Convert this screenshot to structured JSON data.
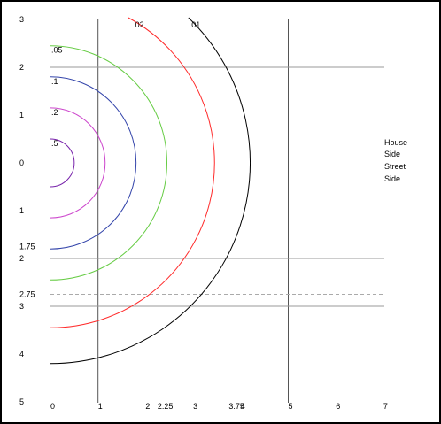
{
  "chart_data": {
    "type": "line",
    "x_tick_labels": [
      {
        "value": 0,
        "label": "0"
      },
      {
        "value": 1,
        "label": "1"
      },
      {
        "value": 2,
        "label": "2"
      },
      {
        "value": 2.25,
        "label": "2.25"
      },
      {
        "value": 3,
        "label": "3"
      },
      {
        "value": 3.75,
        "label": "3.75"
      },
      {
        "value": 4,
        "label": "4"
      },
      {
        "value": 5,
        "label": "5"
      },
      {
        "value": 6,
        "label": "6"
      },
      {
        "value": 7,
        "label": "7"
      }
    ],
    "y_tick_labels": [
      {
        "value": -3,
        "label": "3"
      },
      {
        "value": -2,
        "label": "2"
      },
      {
        "value": -1,
        "label": "1"
      },
      {
        "value": 0,
        "label": "0"
      },
      {
        "value": 1,
        "label": "1"
      },
      {
        "value": 1.75,
        "label": "1.75"
      },
      {
        "value": 2,
        "label": "2"
      },
      {
        "value": 2.75,
        "label": "2.75"
      },
      {
        "value": 3,
        "label": "3"
      },
      {
        "value": 4,
        "label": "4"
      },
      {
        "value": 5,
        "label": "5"
      }
    ],
    "xlim": [
      0,
      7
    ],
    "ylim": [
      -3.3,
      5
    ],
    "vertical_lines": [
      {
        "x": 1,
        "color": "#555555"
      },
      {
        "x": 5,
        "color": "#555555"
      }
    ],
    "horizontal_lines": [
      {
        "y": -2,
        "color": "#999999",
        "dashed": false
      },
      {
        "y": 2,
        "color": "#999999",
        "dashed": false
      },
      {
        "y": 2.75,
        "color": "#aaaaaa",
        "dashed": true
      },
      {
        "y": 3,
        "color": "#999999",
        "dashed": false
      }
    ],
    "series": [
      {
        "name": ".01",
        "radius": 4.2,
        "color": "#000000",
        "label_anchor": "top"
      },
      {
        "name": ".02",
        "radius": 3.45,
        "color": "#ff2a2a",
        "label_anchor": "top"
      },
      {
        "name": ".05",
        "radius": 2.45,
        "color": "#66cc44",
        "label_anchor": "left"
      },
      {
        "name": ".1",
        "radius": 1.8,
        "color": "#3344aa",
        "label_anchor": "left"
      },
      {
        "name": ".2",
        "radius": 1.15,
        "color": "#cc44cc",
        "label_anchor": "left"
      },
      {
        "name": ".5",
        "radius": 0.5,
        "color": "#7722aa",
        "label_anchor": "left"
      }
    ],
    "annotations": [
      "House",
      "Side",
      "Street",
      "Side"
    ]
  }
}
